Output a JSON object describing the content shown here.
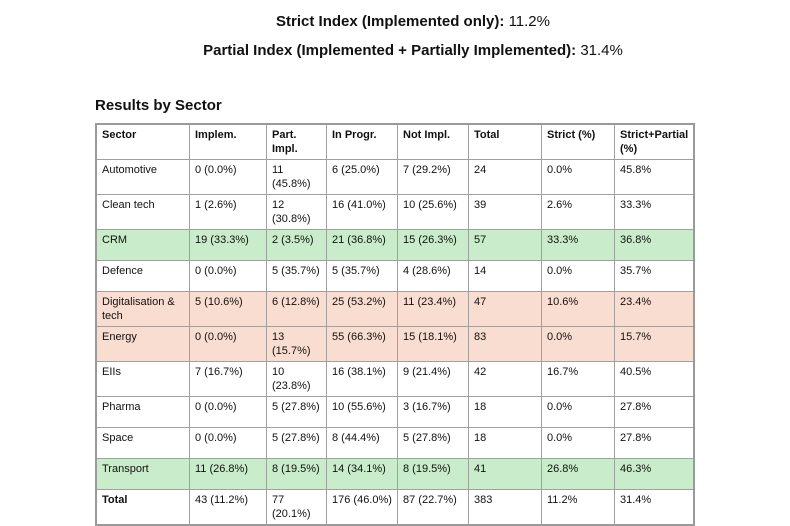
{
  "strict_index": {
    "label": "Strict Index (Implemented only):",
    "value": "11.2%"
  },
  "partial_index": {
    "label": "Partial Index (Implemented + Partially Implemented):",
    "value": "31.4%"
  },
  "section_title": "Results by Sector",
  "highlight_colors": {
    "green": "#c9ecca",
    "peach": "#f9ddd0"
  },
  "table": {
    "headers": [
      "Sector",
      "Implem.",
      "Part. Impl.",
      "In Progr.",
      "Not Impl.",
      "Total",
      "Strict (%)",
      "Strict+Partial (%)"
    ],
    "rows": [
      {
        "highlight": "",
        "cells": [
          "Automotive",
          "0 (0.0%)",
          "11 (45.8%)",
          "6 (25.0%)",
          "7 (29.2%)",
          "24",
          "0.0%",
          "45.8%"
        ]
      },
      {
        "highlight": "",
        "cells": [
          "Clean tech",
          "1 (2.6%)",
          "12 (30.8%)",
          "16 (41.0%)",
          "10 (25.6%)",
          "39",
          "2.6%",
          "33.3%"
        ]
      },
      {
        "highlight": "green",
        "cells": [
          "CRM",
          "19 (33.3%)",
          "2 (3.5%)",
          "21 (36.8%)",
          "15 (26.3%)",
          "57",
          "33.3%",
          "36.8%"
        ]
      },
      {
        "highlight": "",
        "cells": [
          "Defence",
          "0 (0.0%)",
          "5 (35.7%)",
          "5 (35.7%)",
          "4 (28.6%)",
          "14",
          "0.0%",
          "35.7%"
        ]
      },
      {
        "highlight": "peach",
        "cells": [
          "Digitalisation & tech",
          "5 (10.6%)",
          "6 (12.8%)",
          "25 (53.2%)",
          "11 (23.4%)",
          "47",
          "10.6%",
          "23.4%"
        ]
      },
      {
        "highlight": "peach",
        "cells": [
          "Energy",
          "0 (0.0%)",
          "13 (15.7%)",
          "55 (66.3%)",
          "15 (18.1%)",
          "83",
          "0.0%",
          "15.7%"
        ]
      },
      {
        "highlight": "",
        "cells": [
          "EIIs",
          "7 (16.7%)",
          "10 (23.8%)",
          "16 (38.1%)",
          "9 (21.4%)",
          "42",
          "16.7%",
          "40.5%"
        ]
      },
      {
        "highlight": "",
        "cells": [
          "Pharma",
          "0 (0.0%)",
          "5 (27.8%)",
          "10 (55.6%)",
          "3 (16.7%)",
          "18",
          "0.0%",
          "27.8%"
        ]
      },
      {
        "highlight": "",
        "cells": [
          "Space",
          "0 (0.0%)",
          "5 (27.8%)",
          "8 (44.4%)",
          "5 (27.8%)",
          "18",
          "0.0%",
          "27.8%"
        ]
      },
      {
        "highlight": "green",
        "cells": [
          "Transport",
          "11 (26.8%)",
          "8 (19.5%)",
          "14 (34.1%)",
          "8 (19.5%)",
          "41",
          "26.8%",
          "46.3%"
        ]
      },
      {
        "highlight": "total",
        "cells": [
          "Total",
          "43 (11.2%)",
          "77 (20.1%)",
          "176 (46.0%)",
          "87 (22.7%)",
          "383",
          "11.2%",
          "31.4%"
        ]
      }
    ]
  }
}
